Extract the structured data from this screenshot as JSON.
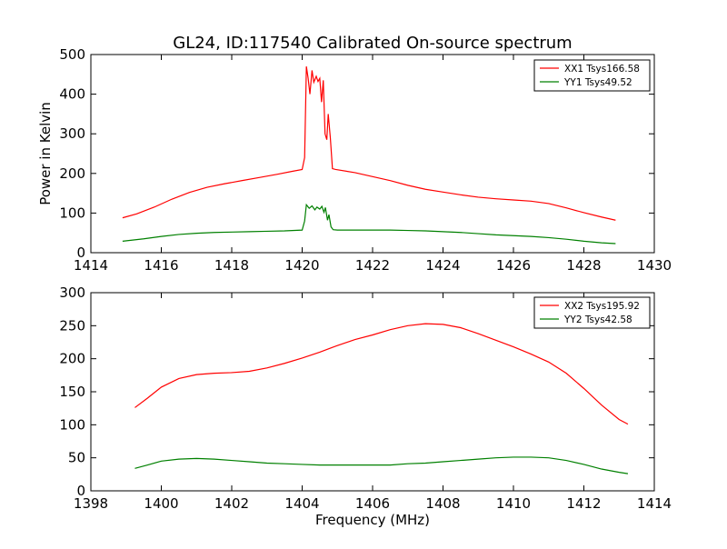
{
  "chart_data": [
    {
      "type": "line",
      "title": "GL24, ID:117540 Calibrated On-source spectrum",
      "xlabel": "",
      "ylabel": "Power in Kelvin",
      "xlim": [
        1414,
        1430
      ],
      "ylim": [
        0,
        500
      ],
      "xticks": [
        1414,
        1416,
        1418,
        1420,
        1422,
        1424,
        1426,
        1428,
        1430
      ],
      "yticks": [
        0,
        100,
        200,
        300,
        400,
        500
      ],
      "legend_position": "top-right",
      "grid": false,
      "series": [
        {
          "name": "XX1 Tsys166.58",
          "color": "#ff0000",
          "points": [
            [
              1414.9,
              88
            ],
            [
              1415.3,
              98
            ],
            [
              1415.8,
              115
            ],
            [
              1416.3,
              135
            ],
            [
              1416.8,
              152
            ],
            [
              1417.3,
              165
            ],
            [
              1417.8,
              174
            ],
            [
              1418.3,
              182
            ],
            [
              1418.8,
              190
            ],
            [
              1419.3,
              198
            ],
            [
              1419.7,
              205
            ],
            [
              1420.0,
              210
            ],
            [
              1420.07,
              240
            ],
            [
              1420.12,
              470
            ],
            [
              1420.17,
              440
            ],
            [
              1420.22,
              400
            ],
            [
              1420.28,
              460
            ],
            [
              1420.33,
              430
            ],
            [
              1420.4,
              445
            ],
            [
              1420.45,
              432
            ],
            [
              1420.5,
              440
            ],
            [
              1420.55,
              380
            ],
            [
              1420.6,
              435
            ],
            [
              1420.65,
              300
            ],
            [
              1420.7,
              285
            ],
            [
              1420.74,
              350
            ],
            [
              1420.8,
              290
            ],
            [
              1420.86,
              212
            ],
            [
              1420.95,
              210
            ],
            [
              1421.5,
              202
            ],
            [
              1422.0,
              192
            ],
            [
              1422.5,
              182
            ],
            [
              1423.0,
              170
            ],
            [
              1423.5,
              160
            ],
            [
              1424.0,
              153
            ],
            [
              1424.5,
              146
            ],
            [
              1425.0,
              140
            ],
            [
              1425.5,
              136
            ],
            [
              1426.0,
              133
            ],
            [
              1426.5,
              130
            ],
            [
              1427.0,
              124
            ],
            [
              1427.5,
              113
            ],
            [
              1428.0,
              101
            ],
            [
              1428.5,
              90
            ],
            [
              1428.9,
              82
            ]
          ]
        },
        {
          "name": "YY1 Tsys49.52",
          "color": "#008000",
          "points": [
            [
              1414.9,
              29
            ],
            [
              1415.5,
              35
            ],
            [
              1416.0,
              41
            ],
            [
              1416.5,
              46
            ],
            [
              1417.0,
              49
            ],
            [
              1417.5,
              51
            ],
            [
              1418.0,
              52
            ],
            [
              1418.5,
              53
            ],
            [
              1419.0,
              54
            ],
            [
              1419.5,
              55
            ],
            [
              1420.0,
              57
            ],
            [
              1420.07,
              80
            ],
            [
              1420.12,
              121
            ],
            [
              1420.2,
              112
            ],
            [
              1420.28,
              118
            ],
            [
              1420.36,
              108
            ],
            [
              1420.42,
              115
            ],
            [
              1420.5,
              110
            ],
            [
              1420.56,
              117
            ],
            [
              1420.62,
              102
            ],
            [
              1420.66,
              114
            ],
            [
              1420.72,
              82
            ],
            [
              1420.76,
              96
            ],
            [
              1420.82,
              65
            ],
            [
              1420.88,
              58
            ],
            [
              1421.0,
              57
            ],
            [
              1421.5,
              57
            ],
            [
              1422.0,
              57
            ],
            [
              1422.5,
              57
            ],
            [
              1423.0,
              56
            ],
            [
              1423.5,
              55
            ],
            [
              1424.0,
              53
            ],
            [
              1424.5,
              51
            ],
            [
              1425.0,
              48
            ],
            [
              1425.5,
              45
            ],
            [
              1426.0,
              43
            ],
            [
              1426.5,
              41
            ],
            [
              1427.0,
              38
            ],
            [
              1427.5,
              34
            ],
            [
              1428.0,
              29
            ],
            [
              1428.5,
              25
            ],
            [
              1428.9,
              23
            ]
          ]
        }
      ]
    },
    {
      "type": "line",
      "title": "",
      "xlabel": "Frequency (MHz)",
      "ylabel": "",
      "xlim": [
        1398,
        1414
      ],
      "ylim": [
        0,
        300
      ],
      "xticks": [
        1398,
        1400,
        1402,
        1404,
        1406,
        1408,
        1410,
        1412,
        1414
      ],
      "yticks": [
        0,
        50,
        100,
        150,
        200,
        250,
        300
      ],
      "legend_position": "top-right",
      "grid": false,
      "series": [
        {
          "name": "XX2 Tsys195.92",
          "color": "#ff0000",
          "points": [
            [
              1399.25,
              126
            ],
            [
              1399.6,
              140
            ],
            [
              1400.0,
              157
            ],
            [
              1400.5,
              170
            ],
            [
              1401.0,
              176
            ],
            [
              1401.5,
              178
            ],
            [
              1402.0,
              179
            ],
            [
              1402.5,
              181
            ],
            [
              1403.0,
              186
            ],
            [
              1403.5,
              193
            ],
            [
              1404.0,
              201
            ],
            [
              1404.5,
              210
            ],
            [
              1405.0,
              220
            ],
            [
              1405.5,
              229
            ],
            [
              1406.0,
              236
            ],
            [
              1406.5,
              244
            ],
            [
              1407.0,
              250
            ],
            [
              1407.5,
              253
            ],
            [
              1408.0,
              252
            ],
            [
              1408.5,
              247
            ],
            [
              1409.0,
              238
            ],
            [
              1409.5,
              228
            ],
            [
              1410.0,
              218
            ],
            [
              1410.5,
              207
            ],
            [
              1411.0,
              195
            ],
            [
              1411.5,
              178
            ],
            [
              1412.0,
              155
            ],
            [
              1412.5,
              130
            ],
            [
              1413.0,
              108
            ],
            [
              1413.25,
              101
            ]
          ]
        },
        {
          "name": "YY2 Tsys42.58",
          "color": "#008000",
          "points": [
            [
              1399.25,
              34
            ],
            [
              1399.6,
              39
            ],
            [
              1400.0,
              45
            ],
            [
              1400.5,
              48
            ],
            [
              1401.0,
              49
            ],
            [
              1401.5,
              48
            ],
            [
              1402.0,
              46
            ],
            [
              1402.5,
              44
            ],
            [
              1403.0,
              42
            ],
            [
              1403.5,
              41
            ],
            [
              1404.0,
              40
            ],
            [
              1404.5,
              39
            ],
            [
              1405.0,
              39
            ],
            [
              1405.5,
              39
            ],
            [
              1406.0,
              39
            ],
            [
              1406.5,
              39
            ],
            [
              1407.0,
              41
            ],
            [
              1407.5,
              42
            ],
            [
              1408.0,
              44
            ],
            [
              1408.5,
              46
            ],
            [
              1409.0,
              48
            ],
            [
              1409.5,
              50
            ],
            [
              1410.0,
              51
            ],
            [
              1410.5,
              51
            ],
            [
              1411.0,
              50
            ],
            [
              1411.5,
              46
            ],
            [
              1412.0,
              40
            ],
            [
              1412.5,
              33
            ],
            [
              1413.0,
              28
            ],
            [
              1413.25,
              26
            ]
          ]
        }
      ]
    }
  ]
}
